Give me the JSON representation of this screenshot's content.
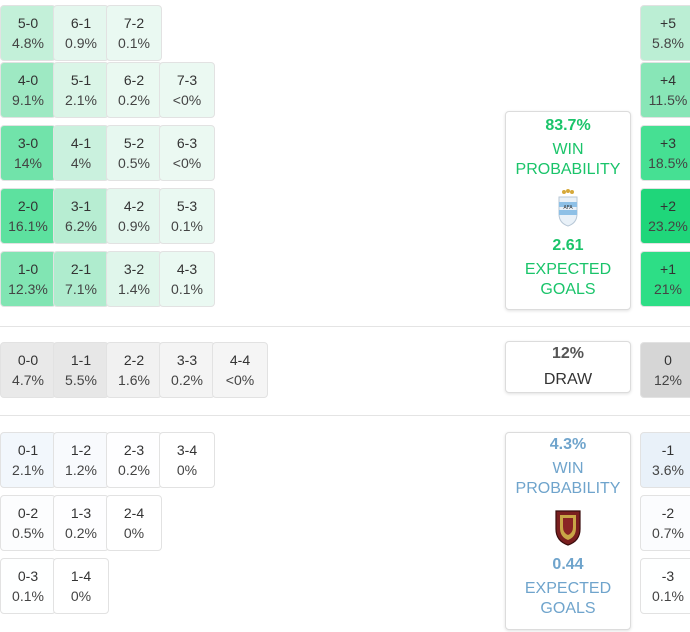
{
  "chart_data": {
    "type": "table",
    "home_scores": [
      {
        "score": "5-0",
        "prob": "4.8%"
      },
      {
        "score": "6-1",
        "prob": "0.9%"
      },
      {
        "score": "7-2",
        "prob": "0.1%"
      },
      {
        "score": "4-0",
        "prob": "9.1%"
      },
      {
        "score": "5-1",
        "prob": "2.1%"
      },
      {
        "score": "6-2",
        "prob": "0.2%"
      },
      {
        "score": "7-3",
        "prob": "<0%"
      },
      {
        "score": "3-0",
        "prob": "14%"
      },
      {
        "score": "4-1",
        "prob": "4%"
      },
      {
        "score": "5-2",
        "prob": "0.5%"
      },
      {
        "score": "6-3",
        "prob": "<0%"
      },
      {
        "score": "2-0",
        "prob": "16.1%"
      },
      {
        "score": "3-1",
        "prob": "6.2%"
      },
      {
        "score": "4-2",
        "prob": "0.9%"
      },
      {
        "score": "5-3",
        "prob": "0.1%"
      },
      {
        "score": "1-0",
        "prob": "12.3%"
      },
      {
        "score": "2-1",
        "prob": "7.1%"
      },
      {
        "score": "3-2",
        "prob": "1.4%"
      },
      {
        "score": "4-3",
        "prob": "0.1%"
      }
    ],
    "draw_scores": [
      {
        "score": "0-0",
        "prob": "4.7%"
      },
      {
        "score": "1-1",
        "prob": "5.5%"
      },
      {
        "score": "2-2",
        "prob": "1.6%"
      },
      {
        "score": "3-3",
        "prob": "0.2%"
      },
      {
        "score": "4-4",
        "prob": "<0%"
      }
    ],
    "away_scores": [
      {
        "score": "0-1",
        "prob": "2.1%"
      },
      {
        "score": "1-2",
        "prob": "1.2%"
      },
      {
        "score": "2-3",
        "prob": "0.2%"
      },
      {
        "score": "3-4",
        "prob": "0%"
      },
      {
        "score": "0-2",
        "prob": "0.5%"
      },
      {
        "score": "1-3",
        "prob": "0.2%"
      },
      {
        "score": "2-4",
        "prob": "0%"
      },
      {
        "score": "0-3",
        "prob": "0.1%"
      },
      {
        "score": "1-4",
        "prob": "0%"
      }
    ],
    "margins": [
      {
        "label": "+5",
        "prob": "5.8%"
      },
      {
        "label": "+4",
        "prob": "11.5%"
      },
      {
        "label": "+3",
        "prob": "18.5%"
      },
      {
        "label": "+2",
        "prob": "23.2%"
      },
      {
        "label": "+1",
        "prob": "21%"
      },
      {
        "label": "0",
        "prob": "12%"
      },
      {
        "label": "-1",
        "prob": "3.6%"
      },
      {
        "label": "-2",
        "prob": "0.7%"
      },
      {
        "label": "-3",
        "prob": "0.1%"
      }
    ]
  },
  "home_summary": {
    "win_prob": "83.7%",
    "win_label_1": "WIN",
    "win_label_2": "PROBABILITY",
    "xg": "2.61",
    "xg_label_1": "EXPECTED",
    "xg_label_2": "GOALS",
    "crest_icon": "argentina-crest-icon"
  },
  "draw_summary": {
    "prob": "12%",
    "label": "DRAW"
  },
  "away_summary": {
    "win_prob": "4.3%",
    "win_label_1": "WIN",
    "win_label_2": "PROBABILITY",
    "xg": "0.44",
    "xg_label_1": "EXPECTED",
    "xg_label_2": "GOALS",
    "crest_icon": "venezuela-crest-icon"
  },
  "colors": {
    "green_accent": "#1ac46a",
    "blue_accent": "#6fa4cc",
    "gray_draw": "#d6d6d6"
  }
}
